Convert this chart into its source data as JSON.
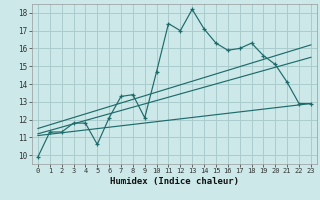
{
  "title": "",
  "xlabel": "Humidex (Indice chaleur)",
  "ylabel": "",
  "background_color": "#cce8e8",
  "grid_color": "#aacccc",
  "line_color": "#1e6b6b",
  "x_ticks": [
    0,
    1,
    2,
    3,
    4,
    5,
    6,
    7,
    8,
    9,
    10,
    11,
    12,
    13,
    14,
    15,
    16,
    17,
    18,
    19,
    20,
    21,
    22,
    23
  ],
  "y_ticks": [
    10,
    11,
    12,
    13,
    14,
    15,
    16,
    17,
    18
  ],
  "xlim": [
    -0.5,
    23.5
  ],
  "ylim": [
    9.5,
    18.5
  ],
  "series_x": [
    0,
    1,
    2,
    3,
    4,
    5,
    6,
    7,
    8,
    9,
    10,
    11,
    12,
    13,
    14,
    15,
    16,
    17,
    18,
    19,
    20,
    21,
    22,
    23
  ],
  "series_y": [
    9.9,
    11.3,
    11.3,
    11.8,
    11.8,
    10.6,
    12.1,
    13.3,
    13.4,
    12.1,
    14.7,
    17.4,
    17.0,
    18.2,
    17.1,
    16.3,
    15.9,
    16.0,
    16.3,
    15.6,
    15.1,
    14.1,
    12.9,
    12.9
  ],
  "lines": [
    {
      "x": [
        0,
        23
      ],
      "y": [
        11.1,
        12.9
      ]
    },
    {
      "x": [
        0,
        23
      ],
      "y": [
        11.2,
        15.5
      ]
    },
    {
      "x": [
        0,
        23
      ],
      "y": [
        11.5,
        16.2
      ]
    }
  ]
}
